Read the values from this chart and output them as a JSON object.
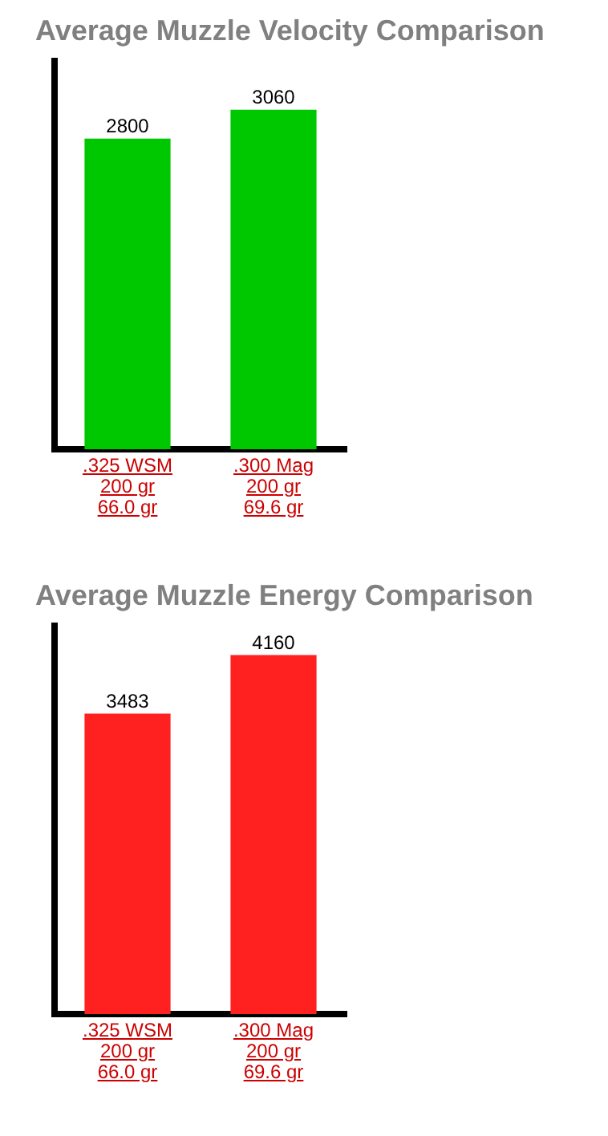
{
  "chart_data": [
    {
      "type": "bar",
      "title": "Average Muzzle Velocity Comparison",
      "categories": [
        ".325 WSM\n200 gr\n66.0 gr",
        ".300 Mag\n200 gr\n69.6 gr"
      ],
      "values": [
        2800,
        3060
      ],
      "color": "#00c800",
      "tick_labels": "x",
      "data_labels": true
    },
    {
      "type": "bar",
      "title": "Average Muzzle Energy Comparison",
      "categories": [
        ".325 WSM\n200 gr\n66.0 gr",
        ".300 Mag\n200 gr\n69.6 gr"
      ],
      "values": [
        3483,
        4160
      ],
      "color": "#ff2020",
      "tick_labels": "x",
      "data_labels": true
    }
  ]
}
